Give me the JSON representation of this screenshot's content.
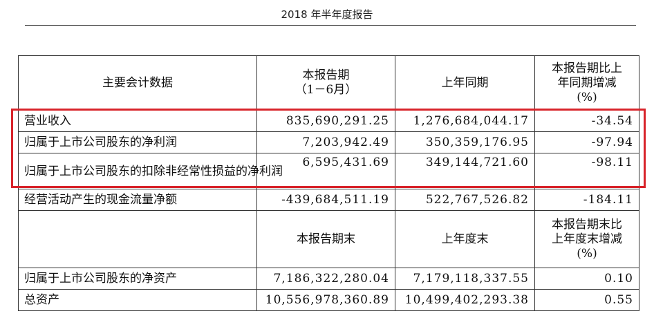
{
  "header": {
    "title": "2018 年半年度报告"
  },
  "table": {
    "header1": {
      "col1": "主要会计数据",
      "col2_line1": "本报告期",
      "col2_line2": "（1－6月）",
      "col3": "上年同期",
      "col4_line1": "本报告期比上",
      "col4_line2": "年同期增减",
      "col4_line3": "(%)"
    },
    "rows1": [
      {
        "label": "营业收入",
        "current": "835,690,291.25",
        "prior": "1,276,684,044.17",
        "change": "-34.54"
      },
      {
        "label": "归属于上市公司股东的净利润",
        "current": "7,203,942.49",
        "prior": "350,359,176.95",
        "change": "-97.94"
      },
      {
        "label": "归属于上市公司股东的扣除非经常性损益的净利润",
        "current": "6,595,431.69",
        "prior": "349,144,721.60",
        "change": "-98.11"
      },
      {
        "label": "经营活动产生的现金流量净额",
        "current": "-439,684,511.19",
        "prior": "522,767,526.82",
        "change": "-184.11"
      }
    ],
    "header2": {
      "col1": "",
      "col2": "本报告期末",
      "col3": "上年度末",
      "col4_line1": "本报告期末比",
      "col4_line2": "上年度末增减",
      "col4_line3": "(%)"
    },
    "rows2": [
      {
        "label": "归属于上市公司股东的净资产",
        "current": "7,186,322,280.04",
        "prior": "7,179,118,337.55",
        "change": "0.10"
      },
      {
        "label": "总资产",
        "current": "10,556,978,360.89",
        "prior": "10,499,402,293.38",
        "change": "0.55"
      }
    ]
  },
  "highlight": {
    "color": "#d8232a"
  }
}
